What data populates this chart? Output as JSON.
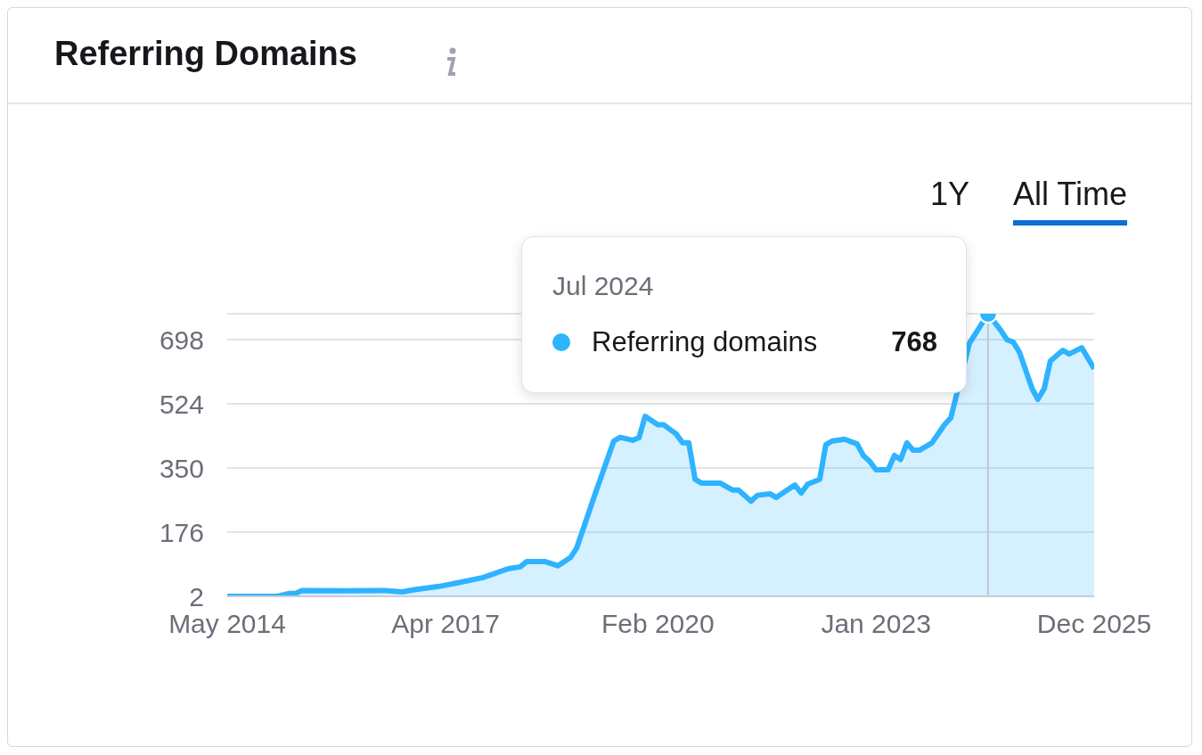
{
  "chart_data": {
    "type": "area",
    "title": "Referring Domains",
    "x": [
      "2014-05",
      "2015-01",
      "2015-03",
      "2015-04",
      "2015-05",
      "2015-12",
      "2016-06",
      "2016-09",
      "2016-11",
      "2017-03",
      "2017-06",
      "2017-10",
      "2018-02",
      "2018-04",
      "2018-05",
      "2018-08",
      "2018-10",
      "2018-12",
      "2019-01",
      "2019-04",
      "2019-07",
      "2019-08",
      "2019-10",
      "2019-11",
      "2019-12",
      "2020-02",
      "2020-03",
      "2020-05",
      "2020-06",
      "2020-07",
      "2020-08",
      "2020-09",
      "2020-12",
      "2021-02",
      "2021-03",
      "2021-05",
      "2021-06",
      "2021-08",
      "2021-09",
      "2021-12",
      "2022-01",
      "2022-02",
      "2022-04",
      "2022-05",
      "2022-06",
      "2022-08",
      "2022-10",
      "2022-11",
      "2022-12",
      "2023-01",
      "2023-03",
      "2023-04",
      "2023-05",
      "2023-06",
      "2023-07",
      "2023-08",
      "2023-10",
      "2023-12",
      "2024-01",
      "2024-02",
      "2024-04",
      "2024-07",
      "2024-09",
      "2024-10",
      "2024-11",
      "2024-12",
      "2025-02",
      "2025-03",
      "2025-04",
      "2025-05",
      "2025-07",
      "2025-08",
      "2025-10",
      "2025-12"
    ],
    "series": [
      {
        "name": "Referring domains",
        "color": "#2eb3ff",
        "values": [
          2,
          2,
          10,
          10,
          18,
          17,
          18,
          14,
          20,
          29,
          39,
          53,
          77,
          82,
          96,
          96,
          85,
          107,
          133,
          280,
          423,
          433,
          425,
          432,
          490,
          467,
          467,
          442,
          418,
          418,
          319,
          309,
          309,
          290,
          290,
          260,
          276,
          280,
          270,
          304,
          282,
          306,
          319,
          413,
          423,
          428,
          415,
          383,
          368,
          345,
          345,
          384,
          373,
          418,
          398,
          398,
          418,
          467,
          486,
          null,
          688,
          768,
          723,
          698,
          691,
          664,
          565,
          536,
          565,
          640,
          669,
          659,
          676,
          619
        ],
        "value_labels": [
          null,
          null,
          null,
          null,
          null,
          null,
          null,
          null,
          null,
          null,
          null,
          null,
          null,
          null,
          null,
          null,
          null,
          null,
          null,
          null,
          null,
          null,
          null,
          null,
          null,
          null,
          null,
          null,
          null,
          null,
          null,
          null,
          null,
          null,
          null,
          null,
          null,
          null,
          null,
          null,
          null,
          null,
          null,
          null,
          null,
          null,
          null,
          null,
          null,
          null,
          null,
          null,
          null,
          null,
          null,
          null,
          null,
          null,
          null,
          null,
          null,
          "768",
          null,
          null,
          null,
          null,
          null,
          null,
          null,
          null,
          null,
          null,
          null,
          null
        ]
      }
    ],
    "xlim": [
      "2014-05",
      "2025-12"
    ],
    "xticks": [
      {
        "value": "2014-05",
        "label": "May 2014"
      },
      {
        "value": "2017-04",
        "label": "Apr 2017"
      },
      {
        "value": "2020-02",
        "label": "Feb 2020"
      },
      {
        "value": "2023-01",
        "label": "Jan 2023"
      },
      {
        "value": "2025-12",
        "label": "Dec 2025"
      }
    ],
    "ylim": [
      2,
      768
    ],
    "yticks": [
      2,
      176,
      350,
      524,
      698
    ],
    "grid": "y",
    "marker": "none",
    "legend": "top",
    "ref_lines": [
      {
        "axis": "x",
        "value": "2024-07",
        "color": "#c4c7d0"
      }
    ],
    "annotations": [
      "Jul 2024",
      "1Y",
      "All Time"
    ]
  }
}
